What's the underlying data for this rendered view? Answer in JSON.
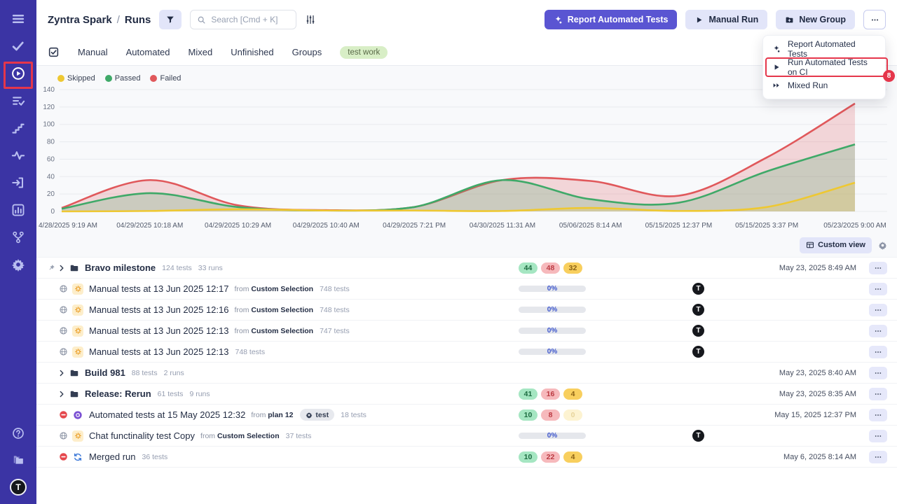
{
  "sidebar": {
    "top_items": [
      {
        "icon": "menu"
      },
      {
        "icon": "check"
      },
      {
        "icon": "play-circle",
        "active": true,
        "annotated": true
      },
      {
        "icon": "list-check"
      },
      {
        "icon": "steps"
      },
      {
        "icon": "activity"
      },
      {
        "icon": "import"
      },
      {
        "icon": "bar-chart"
      },
      {
        "icon": "branch"
      },
      {
        "icon": "gear"
      }
    ],
    "bottom_items": [
      {
        "icon": "help"
      },
      {
        "icon": "folders"
      }
    ],
    "avatar_letter": "T"
  },
  "header": {
    "breadcrumb": {
      "project": "Zyntra Spark",
      "separator": "/",
      "page": "Runs"
    },
    "search": {
      "placeholder": "Search [Cmd + K]"
    },
    "buttons": {
      "report": "Report Automated Tests",
      "manual": "Manual Run",
      "new_group": "New Group"
    }
  },
  "menu": {
    "items": [
      {
        "icon": "sparkle",
        "label": "Report Automated Tests"
      },
      {
        "icon": "play",
        "label": "Run Automated Tests on CI",
        "annotated": true,
        "badge": "8"
      },
      {
        "icon": "fast-forward",
        "label": "Mixed Run"
      }
    ]
  },
  "tabs": [
    "Manual",
    "Automated",
    "Mixed",
    "Unfinished",
    "Groups"
  ],
  "env_tag": "test work",
  "legend": [
    {
      "label": "Skipped",
      "color": "#eec832"
    },
    {
      "label": "Passed",
      "color": "#3fa968"
    },
    {
      "label": "Failed",
      "color": "#e0585b"
    }
  ],
  "chart_data": {
    "type": "area",
    "x": [
      "4/28/2025 9:19 AM",
      "04/29/2025 10:18 AM",
      "04/29/2025 10:29 AM",
      "04/29/2025 10:40 AM",
      "04/29/2025 7:21 PM",
      "04/30/2025 11:31 AM",
      "05/06/2025 8:14 AM",
      "05/15/2025 12:37 PM",
      "05/15/2025 3:37 PM",
      "05/23/2025 9:00 AM"
    ],
    "series": [
      {
        "name": "Failed",
        "color": "#e0585b",
        "values": [
          4,
          36,
          7,
          1.5,
          5,
          36,
          35,
          18,
          62,
          124
        ]
      },
      {
        "name": "Passed",
        "color": "#3fa968",
        "values": [
          3,
          21,
          5,
          1,
          5,
          36,
          14,
          10,
          46,
          77
        ]
      },
      {
        "name": "Skipped",
        "color": "#eec832",
        "values": [
          0,
          0.5,
          2.5,
          1,
          1,
          0.5,
          4,
          0.5,
          5,
          33
        ]
      }
    ],
    "ylim": [
      0,
      140
    ],
    "yticks": [
      0,
      20,
      40,
      60,
      80,
      100,
      120,
      140
    ],
    "grid": true,
    "legend_position": "top-left"
  },
  "toolbar": {
    "custom_view": "Custom view"
  },
  "runs_list": {
    "from_label": "from",
    "rows": [
      {
        "type": "group",
        "pinned": true,
        "title": "Bravo milestone",
        "tests": "124 tests",
        "runs": "33 runs",
        "badges": [
          {
            "v": "44",
            "t": "passed"
          },
          {
            "v": "48",
            "t": "failed"
          },
          {
            "v": "32",
            "t": "skipped"
          }
        ],
        "date": "May 23, 2025 8:49 AM"
      },
      {
        "type": "run",
        "status": "globe",
        "kind": "spinner",
        "title": "Manual tests at 13 Jun 2025 12:17",
        "from": "Custom Selection",
        "tests": "748 tests",
        "progress": "0%",
        "assignee": "T"
      },
      {
        "type": "run",
        "status": "globe",
        "kind": "spinner",
        "title": "Manual tests at 13 Jun 2025 12:16",
        "from": "Custom Selection",
        "tests": "748 tests",
        "progress": "0%",
        "assignee": "T"
      },
      {
        "type": "run",
        "status": "globe",
        "kind": "spinner",
        "title": "Manual tests at 13 Jun 2025 12:13",
        "from": "Custom Selection",
        "tests": "747 tests",
        "progress": "0%",
        "assignee": "T"
      },
      {
        "type": "run",
        "status": "globe",
        "kind": "spinner",
        "title": "Manual tests at 13 Jun 2025 12:13",
        "tests": "748 tests",
        "progress": "0%",
        "assignee": "T"
      },
      {
        "type": "group",
        "title": "Build 981",
        "tests": "88 tests",
        "runs": "2 runs",
        "date": "May 23, 2025 8:40 AM"
      },
      {
        "type": "group",
        "title": "Release: Rerun",
        "tests": "61 tests",
        "runs": "9 runs",
        "badges": [
          {
            "v": "41",
            "t": "passed"
          },
          {
            "v": "16",
            "t": "failed"
          },
          {
            "v": "4",
            "t": "skipped"
          }
        ],
        "date": "May 23, 2025 8:35 AM"
      },
      {
        "type": "run",
        "status": "blocked",
        "kind": "automated",
        "title": "Automated tests at 15 May 2025 12:32",
        "from": "plan 12",
        "tag": "test",
        "tests": "18 tests",
        "badges": [
          {
            "v": "10",
            "t": "passed"
          },
          {
            "v": "8",
            "t": "failed"
          },
          {
            "v": "0",
            "t": "muted"
          }
        ],
        "date": "May 15, 2025 12:37 PM"
      },
      {
        "type": "run",
        "status": "globe",
        "kind": "spinner",
        "title": "Chat functinality test Copy",
        "from": "Custom Selection",
        "tests": "37 tests",
        "progress": "0%",
        "assignee": "T"
      },
      {
        "type": "run",
        "status": "blocked",
        "kind": "merged",
        "title": "Merged run",
        "tests": "36 tests",
        "badges": [
          {
            "v": "10",
            "t": "passed"
          },
          {
            "v": "22",
            "t": "failed"
          },
          {
            "v": "4",
            "t": "skipped"
          }
        ],
        "date": "May 6, 2025 8:14 AM"
      }
    ]
  }
}
